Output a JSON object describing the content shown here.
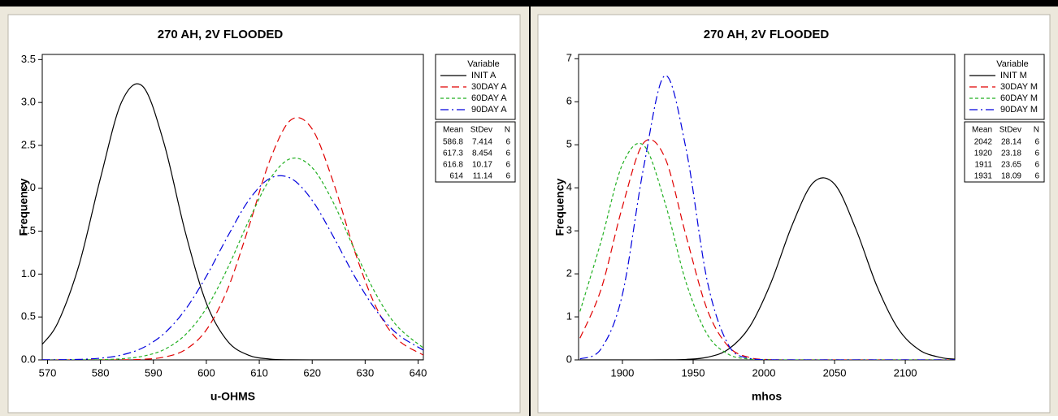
{
  "chart_data": [
    {
      "type": "line",
      "title": "270 AH, 2V FLOODED",
      "x_label": "u-OHMS",
      "y_label": "Frequency",
      "x": [
        569,
        572,
        576,
        580,
        584,
        588,
        592,
        596,
        600,
        604,
        608,
        612,
        616,
        620,
        624,
        628,
        632,
        636,
        641
      ],
      "series": [
        {
          "name": "INIT A",
          "color": "#000000",
          "style": "solid",
          "values": [
            0.181,
            0.44,
            1.117,
            2.119,
            3.007,
            3.187,
            2.525,
            1.495,
            0.662,
            0.219,
            0.054,
            0.01,
            0.001,
            0,
            0,
            0,
            0,
            0,
            0
          ]
        },
        {
          "name": "30DAY A",
          "color": "#e00000",
          "style": "dashed",
          "values": [
            0,
            0,
            0,
            0,
            0.001,
            0.007,
            0.032,
            0.118,
            0.349,
            0.822,
            1.546,
            2.326,
            2.798,
            2.69,
            2.068,
            1.271,
            0.624,
            0.245,
            0.056
          ]
        },
        {
          "name": "60DAY A",
          "color": "#22b022",
          "style": "short-dashed",
          "values": [
            0,
            0,
            0.001,
            0.003,
            0.013,
            0.043,
            0.12,
            0.291,
            0.602,
            1.066,
            1.62,
            2.106,
            2.347,
            2.24,
            1.832,
            1.284,
            0.771,
            0.396,
            0.139
          ]
        },
        {
          "name": "90DAY A",
          "color": "#0000dd",
          "style": "dash-dot",
          "values": [
            0.001,
            0.002,
            0.006,
            0.02,
            0.057,
            0.141,
            0.306,
            0.583,
            0.975,
            1.436,
            1.859,
            2.115,
            2.115,
            1.859,
            1.436,
            0.975,
            0.583,
            0.306,
            0.114
          ]
        }
      ],
      "xlim": [
        569,
        641
      ],
      "ylim": [
        0,
        3.56
      ],
      "xticks": [
        570,
        580,
        590,
        600,
        610,
        620,
        630,
        640
      ],
      "yticks": [
        {
          "value": 0,
          "label": "0.0"
        },
        0.5,
        {
          "value": 1,
          "label": "1.0"
        },
        1.5,
        {
          "value": 2,
          "label": "2.0"
        },
        2.5,
        {
          "value": 3,
          "label": "3.0"
        },
        3.5
      ],
      "legend_title": "Variable",
      "stats": {
        "columns": [
          "Mean",
          "StDev",
          "N"
        ],
        "rows": [
          [
            586.8,
            7.414,
            6
          ],
          [
            617.3,
            8.454,
            6
          ],
          [
            616.8,
            10.17,
            6
          ],
          [
            614,
            11.14,
            6
          ]
        ]
      }
    },
    {
      "type": "line",
      "title": "270 AH, 2V FLOODED",
      "x_label": "mhos",
      "y_label": "Frequency",
      "x": [
        1870,
        1885,
        1900,
        1915,
        1930,
        1945,
        1960,
        1975,
        1990,
        2005,
        2020,
        2035,
        2050,
        2065,
        2080,
        2095,
        2110,
        2125,
        2135
      ],
      "series": [
        {
          "name": "INIT M",
          "color": "#000000",
          "style": "solid",
          "values": [
            0,
            0,
            0,
            0,
            0.002,
            0.011,
            0.061,
            0.25,
            0.772,
            1.792,
            3.133,
            4.123,
            4.085,
            3.046,
            1.709,
            0.723,
            0.23,
            0.055,
            0.018
          ]
        },
        {
          "name": "30DAY M",
          "color": "#e00000",
          "style": "dashed",
          "values": [
            0.505,
            1.651,
            3.559,
            5.044,
            4.705,
            2.885,
            1.165,
            0.309,
            0.054,
            0.006,
            0,
            0,
            0,
            0,
            0,
            0,
            0,
            0,
            0
          ]
        },
        {
          "name": "60DAY M",
          "color": "#22b022",
          "style": "short-dashed",
          "values": [
            1.126,
            2.766,
            4.543,
            4.989,
            3.665,
            1.801,
            0.592,
            0.13,
            0.019,
            0.002,
            0,
            0,
            0,
            0,
            0,
            0,
            0,
            0,
            0
          ]
        },
        {
          "name": "90DAY M",
          "color": "#0000dd",
          "style": "dash-dot",
          "values": [
            0.022,
            0.261,
            1.522,
            4.475,
            6.606,
            4.903,
            1.83,
            0.344,
            0.032,
            0.002,
            0,
            0,
            0,
            0,
            0,
            0,
            0,
            0,
            0
          ]
        }
      ],
      "xlim": [
        1869,
        2135
      ],
      "ylim": [
        0,
        7.1
      ],
      "xticks": [
        1900,
        1950,
        2000,
        2050,
        2100
      ],
      "yticks": [
        0,
        1,
        2,
        3,
        4,
        5,
        6,
        7
      ],
      "legend_title": "Variable",
      "stats": {
        "columns": [
          "Mean",
          "StDev",
          "N"
        ],
        "rows": [
          [
            2042,
            28.14,
            6
          ],
          [
            1920,
            23.18,
            6
          ],
          [
            1911,
            23.65,
            6
          ],
          [
            1931,
            18.09,
            6
          ]
        ]
      }
    }
  ]
}
